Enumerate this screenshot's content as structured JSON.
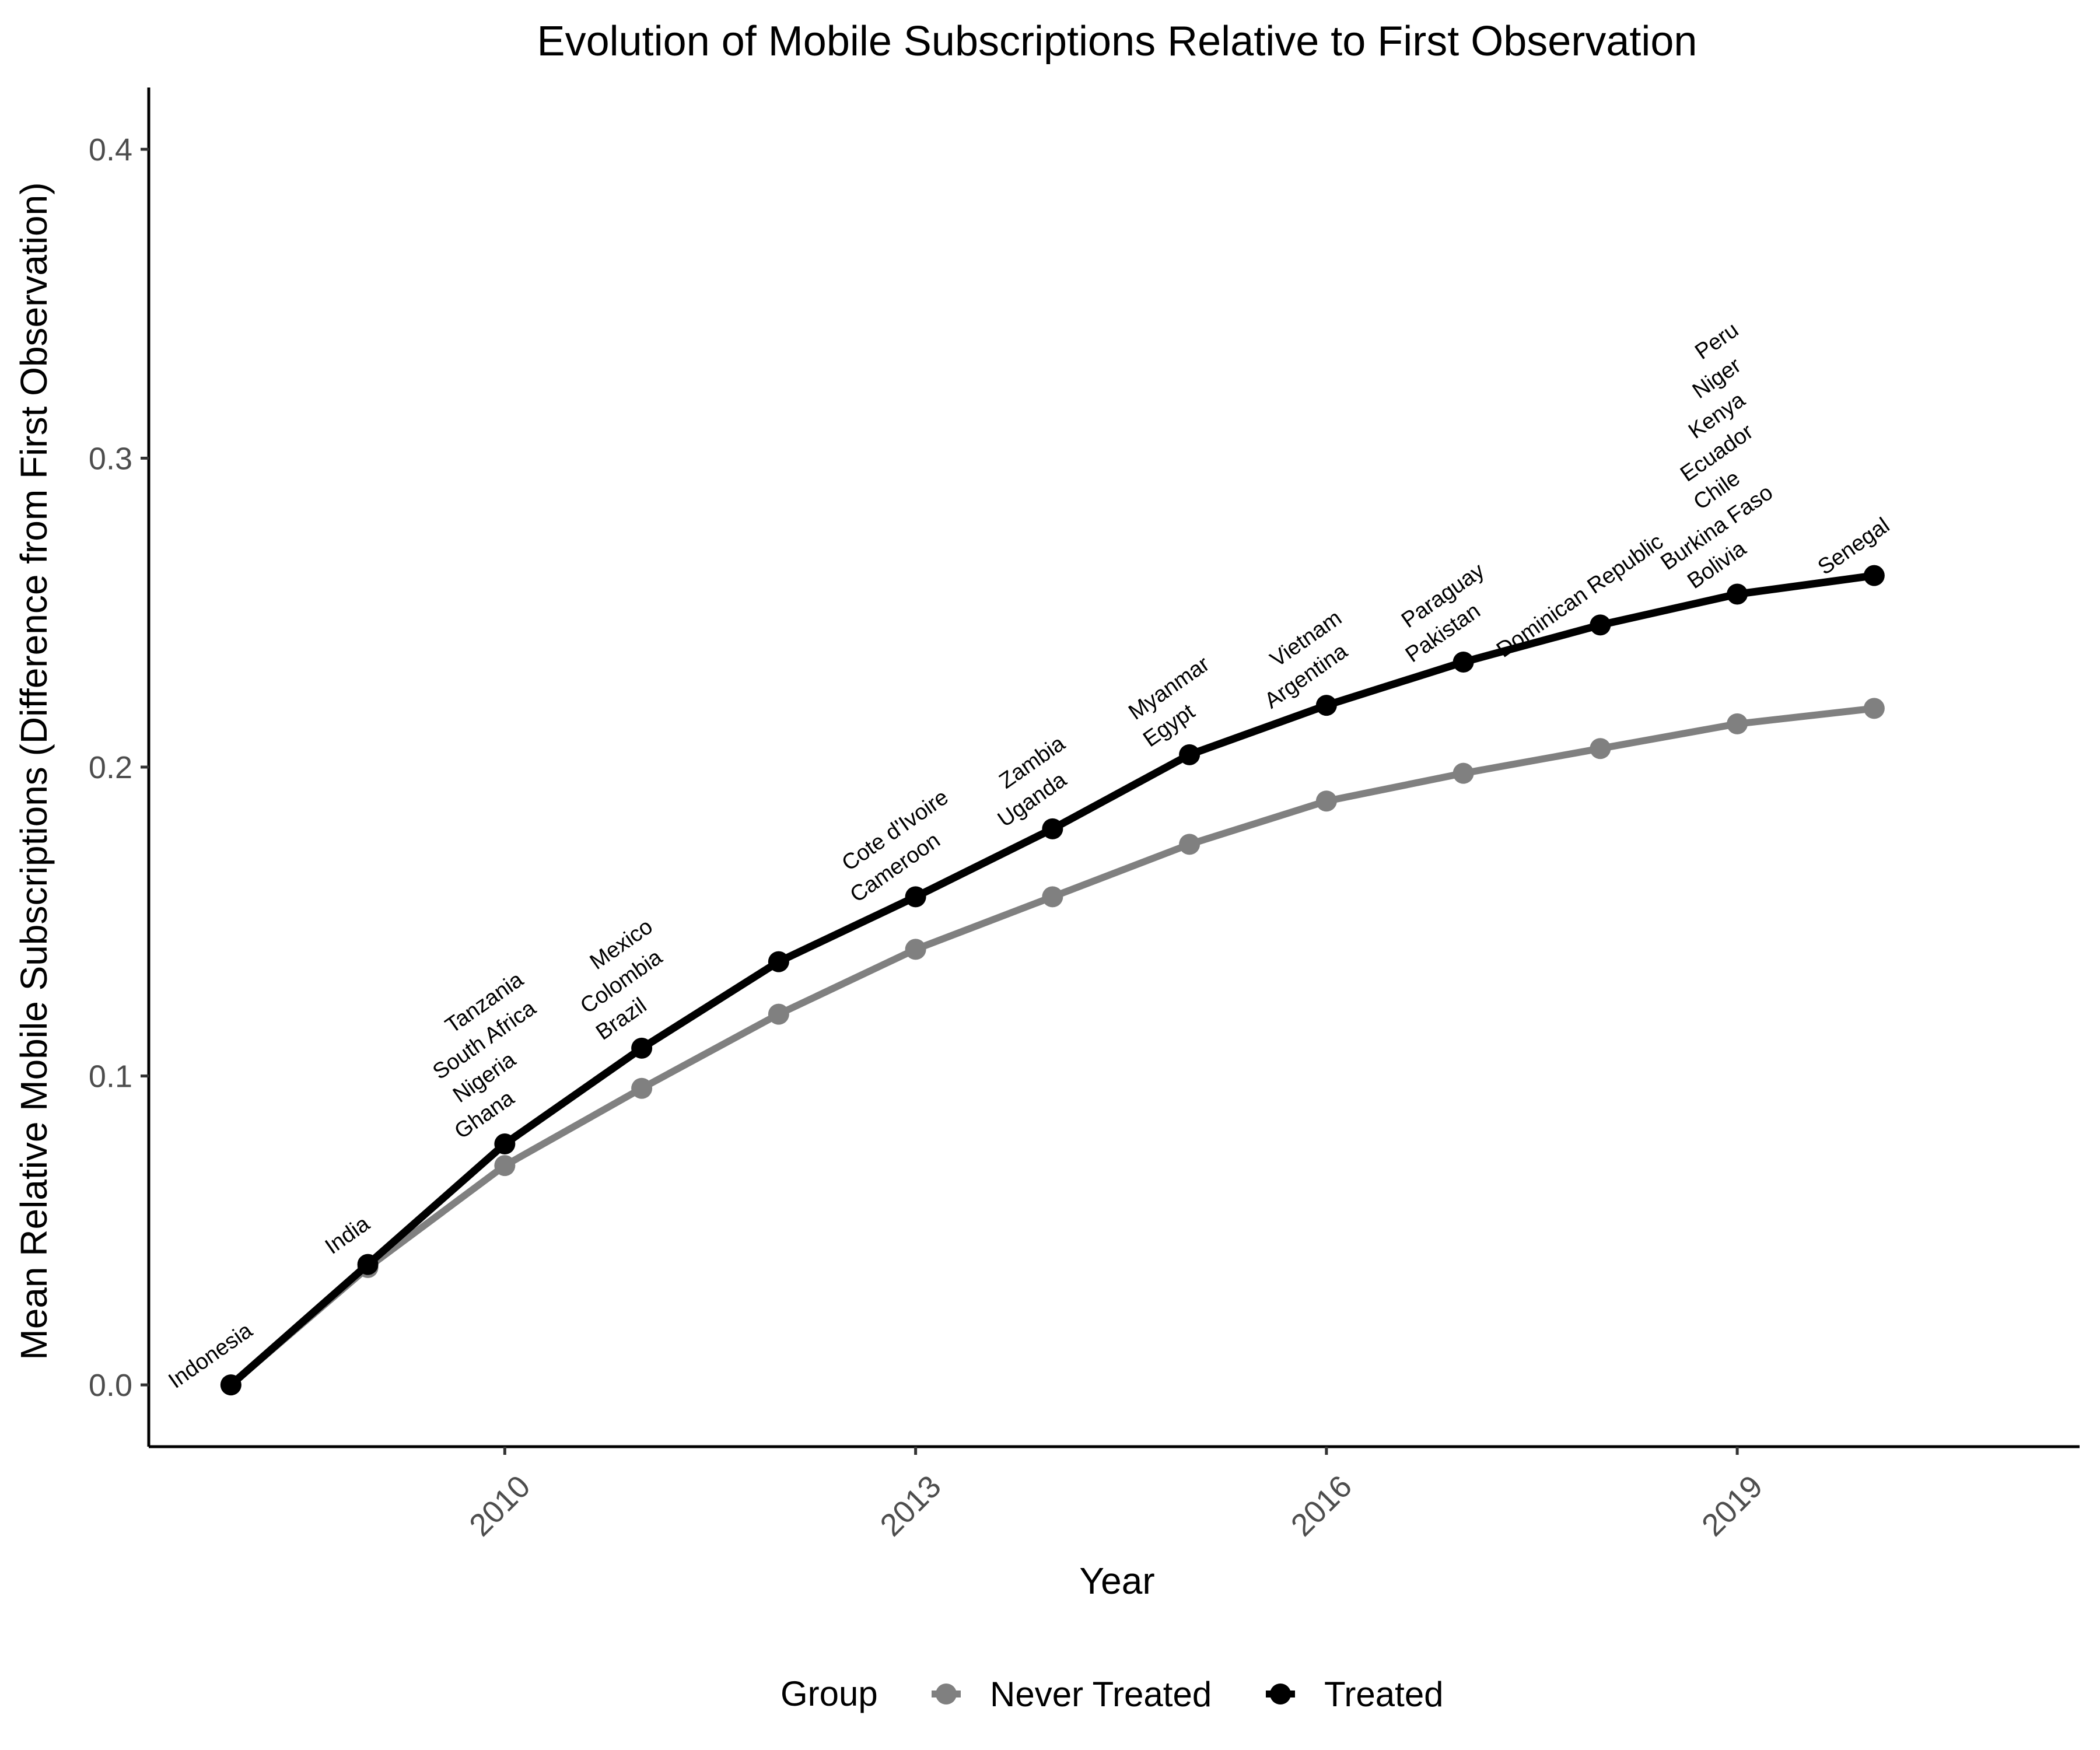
{
  "chart_data": {
    "type": "line",
    "title": "Evolution of Mobile Subscriptions Relative to First Observation",
    "xlabel": "Year",
    "ylabel": "Mean Relative Mobile Subscriptions (Difference from First Observation)",
    "x": [
      2008,
      2009,
      2010,
      2011,
      2012,
      2013,
      2014,
      2015,
      2016,
      2017,
      2018,
      2019,
      2020
    ],
    "xlim": [
      2007.4,
      2021.5
    ],
    "ylim": [
      -0.02,
      0.42
    ],
    "x_ticks": [
      2010,
      2013,
      2016,
      2019
    ],
    "x_tick_labels": [
      "2010",
      "2013",
      "2016",
      "2019"
    ],
    "y_ticks": [
      0.0,
      0.1,
      0.2,
      0.3,
      0.4
    ],
    "y_tick_labels": [
      "0.0",
      "0.1",
      "0.2",
      "0.3",
      "0.4"
    ],
    "grid": false,
    "legend": {
      "title": "Group",
      "position": "bottom",
      "entries": [
        "Never Treated",
        "Treated"
      ]
    },
    "series": [
      {
        "name": "Never Treated",
        "color": "#808080",
        "values": [
          0.0,
          0.038,
          0.071,
          0.096,
          0.12,
          0.141,
          0.158,
          0.175,
          0.189,
          0.198,
          0.206,
          0.214,
          0.219
        ]
      },
      {
        "name": "Treated",
        "color": "#000000",
        "values": [
          0.0,
          0.039,
          0.078,
          0.109,
          0.137,
          0.158,
          0.18,
          0.204,
          0.22,
          0.234,
          0.246,
          0.256,
          0.262
        ]
      }
    ],
    "annotations": [
      {
        "x": 2008,
        "y": 0.0,
        "labels": [
          "Indonesia"
        ]
      },
      {
        "x": 2009,
        "y": 0.039,
        "labels": [
          "India"
        ]
      },
      {
        "x": 2010,
        "y": 0.078,
        "labels": [
          "Ghana",
          "Nigeria",
          "South Africa",
          "Tanzania"
        ]
      },
      {
        "x": 2011,
        "y": 0.109,
        "labels": [
          "Brazil",
          "Colombia",
          "Mexico"
        ]
      },
      {
        "x": 2013,
        "y": 0.158,
        "labels": [
          "Cameroon",
          "Cote d'Ivoire"
        ]
      },
      {
        "x": 2014,
        "y": 0.18,
        "labels": [
          "Uganda",
          "Zambia"
        ]
      },
      {
        "x": 2015,
        "y": 0.204,
        "labels": [
          "Egypt",
          "Myanmar"
        ]
      },
      {
        "x": 2016,
        "y": 0.22,
        "labels": [
          "Argentina",
          "Vietnam"
        ]
      },
      {
        "x": 2017,
        "y": 0.234,
        "labels": [
          "Pakistan",
          "Paraguay"
        ]
      },
      {
        "x": 2018,
        "y": 0.246,
        "labels": [
          "Dominican Republic"
        ]
      },
      {
        "x": 2019,
        "y": 0.256,
        "labels": [
          "Bolivia",
          "Burkina Faso",
          "Chile",
          "Ecuador",
          "Kenya",
          "Niger",
          "Peru"
        ]
      },
      {
        "x": 2020,
        "y": 0.262,
        "labels": [
          "Senegal"
        ]
      }
    ]
  }
}
